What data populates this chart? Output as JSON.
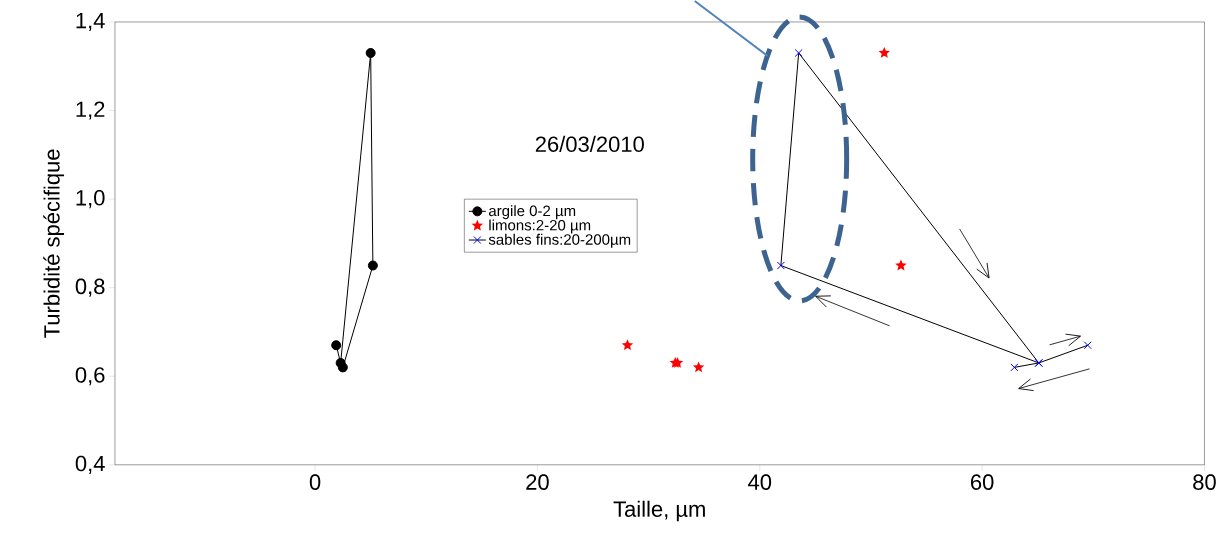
{
  "chart_data": {
    "type": "line",
    "xlabel": "Taille, µm",
    "ylabel": "Turbidité spécifique",
    "annotations": [
      "26/03/2010"
    ],
    "xlim": [
      -18,
      80
    ],
    "xticks": [
      0,
      20,
      40,
      60,
      80
    ],
    "ylim": [
      0.4,
      1.4
    ],
    "yticks": [
      {
        "value": 0.4,
        "label": "0,4"
      },
      {
        "value": 0.6,
        "label": "0,6"
      },
      {
        "value": 0.8,
        "label": "0,8"
      },
      {
        "value": 1.0,
        "label": "1,0"
      },
      {
        "value": 1.2,
        "label": "1,2"
      },
      {
        "value": 1.4,
        "label": "1,4"
      }
    ],
    "legend": "center",
    "grid": false,
    "series": [
      {
        "name": "argile 0-2 µm",
        "marker": "circle",
        "color": "#000000",
        "x": [
          1.9,
          2.3,
          5.0,
          5.2,
          2.5
        ],
        "values": [
          0.67,
          0.63,
          1.33,
          0.85,
          0.62
        ]
      },
      {
        "name": "limons:2-20 µm",
        "type": "scatter",
        "marker": "star",
        "color": "#ff0000",
        "x": [
          28.1,
          32.4,
          32.6,
          34.5,
          51.2,
          52.7
        ],
        "values": [
          0.67,
          0.63,
          0.63,
          0.62,
          1.33,
          0.85
        ]
      },
      {
        "name": "sables fins:20-200µm",
        "marker": "cross",
        "color": "#0000ff",
        "x": [
          69.5,
          65.1,
          43.5,
          41.9,
          65.1,
          62.9
        ],
        "values": [
          0.67,
          0.63,
          1.33,
          0.85,
          0.63,
          0.62
        ]
      }
    ]
  }
}
